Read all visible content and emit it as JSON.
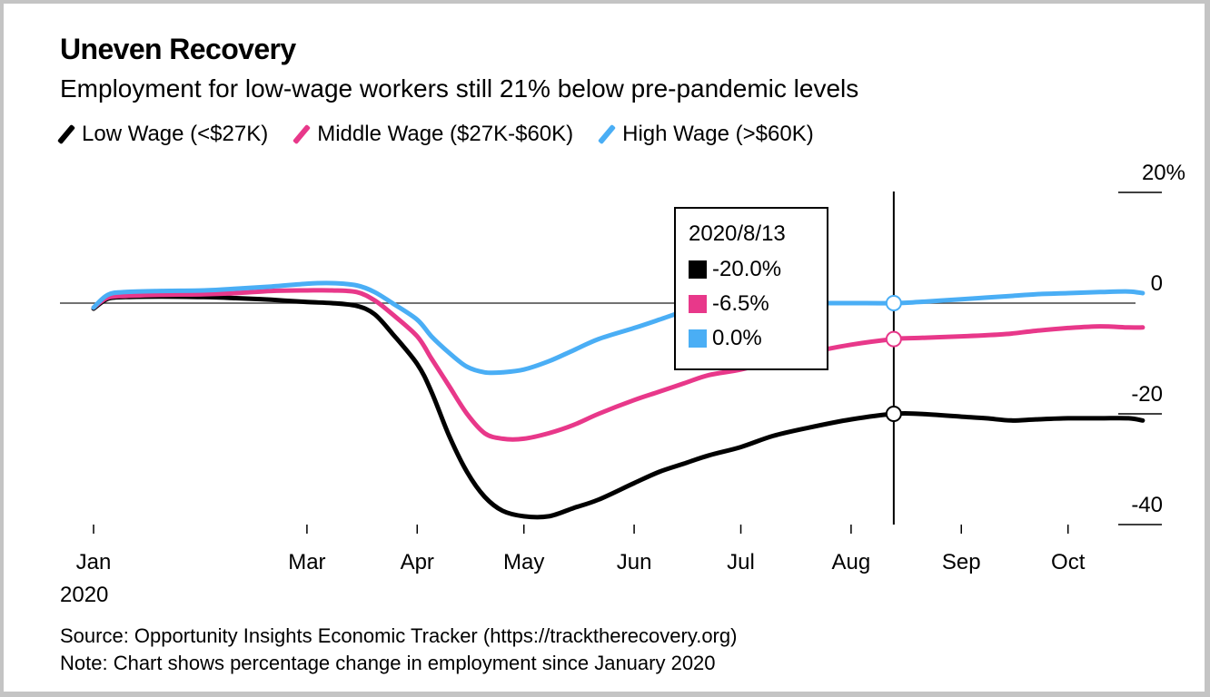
{
  "header": {
    "title": "Uneven Recovery",
    "subtitle": "Employment for low-wage workers still 21% below pre-pandemic levels"
  },
  "legend": [
    {
      "label": "Low Wage (<$27K)",
      "color": "#000000"
    },
    {
      "label": "Middle Wage ($27K-$60K)",
      "color": "#e8388a"
    },
    {
      "label": "High Wage (>$60K)",
      "color": "#4aaef5"
    }
  ],
  "tooltip": {
    "date": "2020/8/13",
    "rows": [
      {
        "value": "-20.0%",
        "color": "#000000"
      },
      {
        "value": "-6.5%",
        "color": "#e8388a"
      },
      {
        "value": "0.0%",
        "color": "#4aaef5"
      }
    ]
  },
  "footer": {
    "source": "Source: Opportunity Insights Economic Tracker (https://tracktherecovery.org)",
    "note": "Note: Chart shows percentage change in employment since January 2020"
  },
  "chart_data": {
    "type": "line",
    "title": "Uneven Recovery",
    "subtitle": "Employment for low-wage workers still 21% below pre-pandemic levels",
    "xlabel": "",
    "ylabel": "",
    "x_ticks": [
      {
        "date": "2020-01-01",
        "label": "Jan",
        "sublabel": "2020"
      },
      {
        "date": "2020-03-01",
        "label": "Mar"
      },
      {
        "date": "2020-04-01",
        "label": "Apr"
      },
      {
        "date": "2020-05-01",
        "label": "May"
      },
      {
        "date": "2020-06-01",
        "label": "Jun"
      },
      {
        "date": "2020-07-01",
        "label": "Jul"
      },
      {
        "date": "2020-08-01",
        "label": "Aug"
      },
      {
        "date": "2020-09-01",
        "label": "Sep"
      },
      {
        "date": "2020-10-01",
        "label": "Oct"
      }
    ],
    "y_ticks": [
      {
        "value": 20,
        "label": "20%"
      },
      {
        "value": 0,
        "label": "0"
      },
      {
        "value": -20,
        "label": "-20"
      },
      {
        "value": -40,
        "label": "-40"
      }
    ],
    "ylim": [
      -40,
      20
    ],
    "xlim": [
      "2020-01-01",
      "2020-10-22"
    ],
    "axis_side": "right",
    "legend_position": "top-left",
    "crosshair_date": "2020-08-13",
    "x": [
      "2020-01-01",
      "2020-01-05",
      "2020-01-10",
      "2020-01-20",
      "2020-02-01",
      "2020-02-10",
      "2020-02-20",
      "2020-03-01",
      "2020-03-08",
      "2020-03-15",
      "2020-03-20",
      "2020-03-25",
      "2020-04-01",
      "2020-04-05",
      "2020-04-10",
      "2020-04-15",
      "2020-04-20",
      "2020-04-25",
      "2020-05-01",
      "2020-05-08",
      "2020-05-15",
      "2020-05-22",
      "2020-06-01",
      "2020-06-08",
      "2020-06-15",
      "2020-06-22",
      "2020-07-01",
      "2020-07-10",
      "2020-07-20",
      "2020-08-01",
      "2020-08-13",
      "2020-08-20",
      "2020-09-01",
      "2020-09-08",
      "2020-09-15",
      "2020-09-22",
      "2020-10-01",
      "2020-10-10",
      "2020-10-18",
      "2020-10-22"
    ],
    "series": [
      {
        "name": "Low Wage (<$27K)",
        "color": "#000000",
        "values": [
          -1.0,
          0.8,
          1.1,
          1.2,
          1.1,
          0.9,
          0.6,
          0.2,
          0.0,
          -0.5,
          -2.0,
          -5.5,
          -11.0,
          -16.0,
          -24.0,
          -30.5,
          -35.0,
          -37.5,
          -38.5,
          -38.5,
          -37.0,
          -35.5,
          -32.5,
          -30.5,
          -29.0,
          -27.5,
          -26.0,
          -24.0,
          -22.5,
          -21.0,
          -20.0,
          -20.0,
          -20.5,
          -20.8,
          -21.2,
          -21.0,
          -20.8,
          -20.8,
          -20.8,
          -21.2
        ]
      },
      {
        "name": "Middle Wage ($27K-$60K)",
        "color": "#e8388a",
        "values": [
          -0.8,
          1.0,
          1.3,
          1.5,
          1.6,
          1.8,
          2.2,
          2.3,
          2.3,
          2.0,
          0.5,
          -2.0,
          -6.0,
          -10.0,
          -15.0,
          -20.0,
          -23.5,
          -24.5,
          -24.5,
          -23.5,
          -22.0,
          -20.0,
          -17.5,
          -16.0,
          -14.5,
          -13.0,
          -12.0,
          -10.5,
          -9.0,
          -7.5,
          -6.5,
          -6.3,
          -6.0,
          -5.8,
          -5.5,
          -5.0,
          -4.5,
          -4.2,
          -4.4,
          -4.4
        ]
      },
      {
        "name": "High Wage (>$60K)",
        "color": "#4aaef5",
        "values": [
          -0.8,
          1.5,
          2.0,
          2.2,
          2.3,
          2.6,
          3.0,
          3.5,
          3.6,
          3.2,
          2.0,
          0.0,
          -3.0,
          -6.0,
          -9.0,
          -11.5,
          -12.5,
          -12.5,
          -12.0,
          -10.5,
          -8.5,
          -6.5,
          -4.5,
          -3.0,
          -1.5,
          -0.5,
          0.0,
          0.0,
          0.0,
          0.0,
          0.0,
          0.2,
          0.7,
          1.0,
          1.3,
          1.6,
          1.8,
          2.0,
          2.1,
          1.8
        ]
      }
    ],
    "crosshair_values": [
      -20.0,
      -6.5,
      0.0
    ]
  }
}
